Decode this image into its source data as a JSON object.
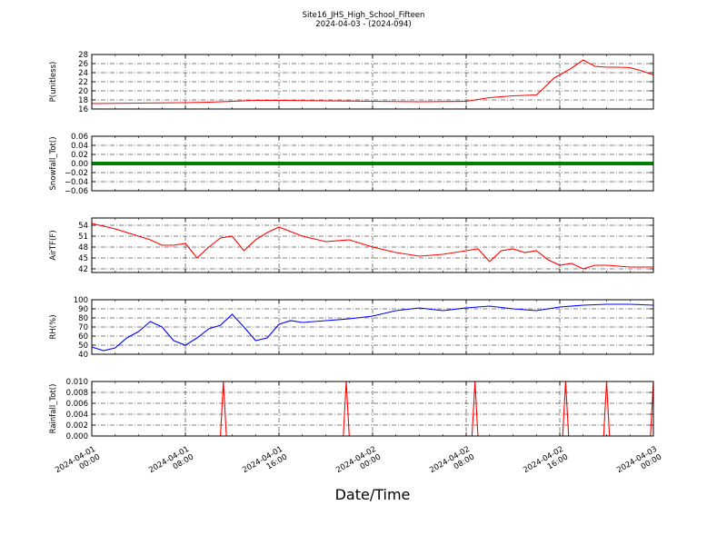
{
  "title": "Site16_JHS_High_School_Fifteen",
  "subtitle": "2024-04-03 - (2024-094)",
  "xlabel": "Date/Time",
  "x_ticks": [
    {
      "line1": "2024-04-01",
      "line2": "00:00"
    },
    {
      "line1": "2024-04-01",
      "line2": "08:00"
    },
    {
      "line1": "2024-04-01",
      "line2": "16:00"
    },
    {
      "line1": "2024-04-02",
      "line2": "00:00"
    },
    {
      "line1": "2024-04-02",
      "line2": "08:00"
    },
    {
      "line1": "2024-04-02",
      "line2": "16:00"
    },
    {
      "line1": "2024-04-03",
      "line2": "00:00"
    }
  ],
  "chart_data": [
    {
      "type": "line",
      "ylabel": "P(unitless)",
      "ylim": [
        16,
        28
      ],
      "yticks": [
        "16",
        "18",
        "20",
        "22",
        "24",
        "26",
        "28"
      ],
      "xlim": [
        "2024-04-01 00:00",
        "2024-04-03 00:00"
      ],
      "grid": true,
      "series": [
        {
          "color": "#ff0000",
          "x": [
            "2024-04-01 00:00",
            "2024-04-01 04:00",
            "2024-04-01 08:00",
            "2024-04-01 10:00",
            "2024-04-01 12:00",
            "2024-04-01 14:00",
            "2024-04-01 16:00",
            "2024-04-01 20:00",
            "2024-04-02 00:00",
            "2024-04-02 04:00",
            "2024-04-02 08:00",
            "2024-04-02 10:00",
            "2024-04-02 12:00",
            "2024-04-02 14:00",
            "2024-04-02 15:00",
            "2024-04-02 15:30",
            "2024-04-02 16:00",
            "2024-04-02 17:00",
            "2024-04-02 18:00",
            "2024-04-02 19:00",
            "2024-04-02 20:00",
            "2024-04-02 21:00",
            "2024-04-02 22:00",
            "2024-04-02 23:00",
            "2024-04-03 00:00"
          ],
          "y": [
            17.2,
            17.3,
            17.4,
            17.5,
            17.7,
            17.9,
            17.9,
            17.8,
            17.7,
            17.6,
            17.7,
            18.5,
            18.9,
            19.1,
            21.5,
            22.8,
            23.5,
            25.0,
            26.8,
            25.4,
            25.2,
            25.2,
            25.1,
            24.4,
            23.5
          ]
        }
      ]
    },
    {
      "type": "line",
      "ylabel": "Snowfall_Tot()",
      "ylim": [
        -0.06,
        0.06
      ],
      "yticks": [
        "−0.06",
        "−0.04",
        "−0.02",
        "0.00",
        "0.02",
        "0.04",
        "0.06"
      ],
      "xlim": [
        "2024-04-01 00:00",
        "2024-04-03 00:00"
      ],
      "grid": true,
      "series": [
        {
          "color": "#008000",
          "x": [
            "2024-04-01 00:00",
            "2024-04-03 00:00"
          ],
          "y": [
            0,
            0
          ]
        }
      ]
    },
    {
      "type": "line",
      "ylabel": "AirTF(F)",
      "ylim": [
        41,
        56
      ],
      "yticks": [
        "42",
        "45",
        "48",
        "51",
        "54"
      ],
      "xlim": [
        "2024-04-01 00:00",
        "2024-04-03 00:00"
      ],
      "grid": true,
      "series": [
        {
          "color": "#ff0000",
          "x": [
            "2024-04-01 00:00",
            "2024-04-01 02:00",
            "2024-04-01 04:00",
            "2024-04-01 05:00",
            "2024-04-01 06:00",
            "2024-04-01 07:00",
            "2024-04-01 08:00",
            "2024-04-01 09:00",
            "2024-04-01 10:00",
            "2024-04-01 11:00",
            "2024-04-01 12:00",
            "2024-04-01 13:00",
            "2024-04-01 14:00",
            "2024-04-01 15:00",
            "2024-04-01 16:00",
            "2024-04-01 18:00",
            "2024-04-01 20:00",
            "2024-04-01 22:00",
            "2024-04-02 00:00",
            "2024-04-02 02:00",
            "2024-04-02 04:00",
            "2024-04-02 06:00",
            "2024-04-02 08:00",
            "2024-04-02 09:00",
            "2024-04-02 10:00",
            "2024-04-02 11:00",
            "2024-04-02 12:00",
            "2024-04-02 13:00",
            "2024-04-02 14:00",
            "2024-04-02 15:00",
            "2024-04-02 16:00",
            "2024-04-02 17:00",
            "2024-04-02 18:00",
            "2024-04-02 19:00",
            "2024-04-02 20:00",
            "2024-04-02 22:00",
            "2024-04-03 00:00"
          ],
          "y": [
            54.5,
            53.0,
            51.0,
            50.0,
            48.5,
            48.5,
            49.0,
            45.0,
            48.0,
            50.5,
            51.0,
            47.0,
            50.0,
            52.0,
            53.5,
            51.0,
            49.5,
            50.0,
            48.0,
            46.5,
            45.5,
            46.0,
            47.0,
            47.5,
            44.0,
            47.0,
            47.5,
            46.5,
            47.0,
            44.5,
            43.0,
            43.5,
            42.0,
            43.0,
            43.0,
            42.5,
            42.5
          ]
        }
      ]
    },
    {
      "type": "line",
      "ylabel": "RH(%)",
      "ylim": [
        40,
        100
      ],
      "yticks": [
        "40",
        "50",
        "60",
        "70",
        "80",
        "90",
        "100"
      ],
      "xlim": [
        "2024-04-01 00:00",
        "2024-04-03 00:00"
      ],
      "grid": true,
      "series": [
        {
          "color": "#0000ff",
          "x": [
            "2024-04-01 00:00",
            "2024-04-01 01:00",
            "2024-04-01 02:00",
            "2024-04-01 03:00",
            "2024-04-01 04:00",
            "2024-04-01 05:00",
            "2024-04-01 06:00",
            "2024-04-01 07:00",
            "2024-04-01 08:00",
            "2024-04-01 09:00",
            "2024-04-01 10:00",
            "2024-04-01 11:00",
            "2024-04-01 12:00",
            "2024-04-01 13:00",
            "2024-04-01 14:00",
            "2024-04-01 15:00",
            "2024-04-01 16:00",
            "2024-04-01 17:00",
            "2024-04-01 18:00",
            "2024-04-01 20:00",
            "2024-04-01 22:00",
            "2024-04-02 00:00",
            "2024-04-02 02:00",
            "2024-04-02 04:00",
            "2024-04-02 06:00",
            "2024-04-02 08:00",
            "2024-04-02 10:00",
            "2024-04-02 12:00",
            "2024-04-02 14:00",
            "2024-04-02 16:00",
            "2024-04-02 18:00",
            "2024-04-02 20:00",
            "2024-04-02 22:00",
            "2024-04-03 00:00"
          ],
          "y": [
            48,
            44,
            47,
            58,
            65,
            76,
            70,
            55,
            50,
            58,
            68,
            72,
            84,
            70,
            55,
            58,
            73,
            77,
            75,
            77,
            79,
            82,
            88,
            91,
            88,
            91,
            93,
            90,
            88,
            92,
            94,
            95,
            95,
            94
          ]
        }
      ]
    },
    {
      "type": "line",
      "ylabel": "Rainfall_Tot()",
      "ylim": [
        0,
        0.01
      ],
      "yticks": [
        "0.000",
        "0.002",
        "0.004",
        "0.006",
        "0.008",
        "0.010"
      ],
      "xlim": [
        "2024-04-01 00:00",
        "2024-04-03 00:00"
      ],
      "grid": true,
      "series": [
        {
          "color": "#ff0000",
          "x": [
            "2024-04-01 00:00",
            "2024-04-01 11:00",
            "2024-04-01 11:15",
            "2024-04-01 11:30",
            "2024-04-01 21:30",
            "2024-04-01 21:45",
            "2024-04-01 22:00",
            "2024-04-02 08:30",
            "2024-04-02 08:45",
            "2024-04-02 09:00",
            "2024-04-02 16:15",
            "2024-04-02 16:30",
            "2024-04-02 16:45",
            "2024-04-02 19:45",
            "2024-04-02 20:00",
            "2024-04-02 20:15",
            "2024-04-02 23:45",
            "2024-04-03 00:00"
          ],
          "y": [
            0,
            0,
            0.01,
            0,
            0,
            0.01,
            0,
            0,
            0.01,
            0,
            0,
            0.01,
            0,
            0,
            0.01,
            0,
            0,
            0.01
          ]
        }
      ]
    }
  ]
}
